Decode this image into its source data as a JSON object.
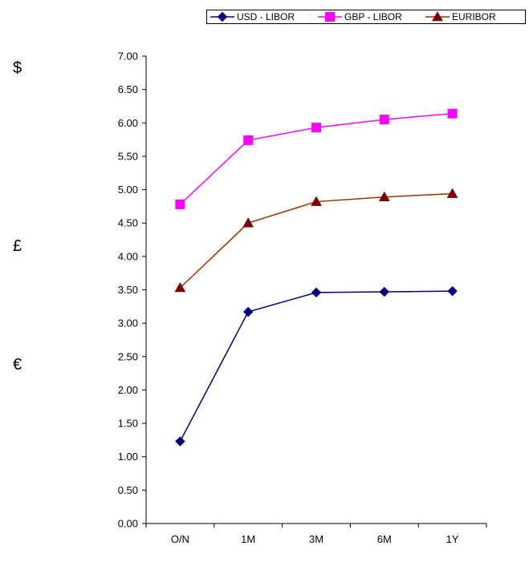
{
  "currency_symbols": {
    "usd": "$",
    "gbp": "£",
    "eur": "€"
  },
  "chart_data": {
    "type": "line",
    "categories": [
      "O/N",
      "1M",
      "3M",
      "6M",
      "1Y"
    ],
    "series": [
      {
        "name": "USD - LIBOR",
        "marker": "diamond",
        "color": "#000080",
        "values": [
          1.23,
          3.17,
          3.46,
          3.47,
          3.48
        ]
      },
      {
        "name": "GBP - LIBOR",
        "marker": "square",
        "color": "#ff00ff",
        "values": [
          4.78,
          5.74,
          5.93,
          6.05,
          6.14
        ]
      },
      {
        "name": "EURIBOR",
        "marker": "triangle",
        "color": "#993300",
        "marker_color": "#800000",
        "values": [
          3.53,
          4.5,
          4.82,
          4.89,
          4.94
        ]
      }
    ],
    "ylim": [
      0,
      7
    ],
    "yticks": [
      "0.00",
      "0.50",
      "1.00",
      "1.50",
      "2.00",
      "2.50",
      "3.00",
      "3.50",
      "4.00",
      "4.50",
      "5.00",
      "5.50",
      "6.00",
      "6.50",
      "7.00"
    ],
    "title": "",
    "xlabel": "",
    "ylabel": "",
    "grid": false,
    "legend_position": "top-right"
  }
}
